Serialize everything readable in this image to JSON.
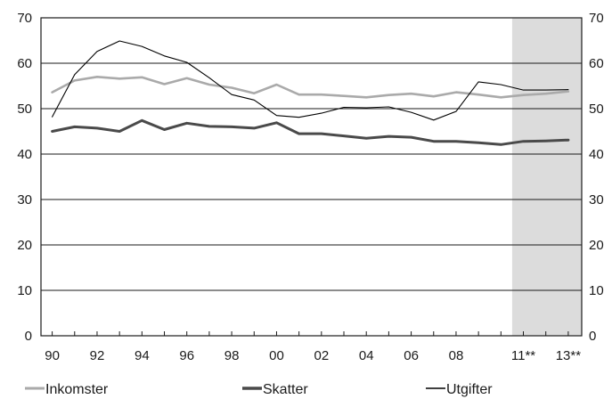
{
  "chart_data": {
    "type": "line",
    "x": [
      1990,
      1991,
      1992,
      1993,
      1994,
      1995,
      1996,
      1997,
      1998,
      1999,
      2000,
      2001,
      2002,
      2003,
      2004,
      2005,
      2006,
      2007,
      2008,
      2009,
      2010,
      2011,
      2012,
      2013
    ],
    "x_tick_values": [
      1990,
      1992,
      1994,
      1996,
      1998,
      2000,
      2002,
      2004,
      2006,
      2008,
      2011,
      2013
    ],
    "x_tick_labels": [
      "90",
      "92",
      "94",
      "96",
      "98",
      "00",
      "02",
      "04",
      "06",
      "08",
      "11**",
      "13**"
    ],
    "xlim": [
      1989.5,
      2013.6
    ],
    "ylim": [
      0,
      70
    ],
    "y_ticks": [
      0,
      10,
      20,
      30,
      40,
      50,
      60,
      70
    ],
    "y_tick_labels": [
      "0",
      "10",
      "20",
      "30",
      "40",
      "50",
      "60",
      "70"
    ],
    "grid": "horizontal",
    "forecast_shading": {
      "from": 2010.5,
      "to": 2013.6,
      "color": "#dcdcdc"
    },
    "legend_position": "bottom",
    "series": [
      {
        "name": "Inkomster",
        "color": "#aaaaaa",
        "width": 2.6,
        "values": [
          53.6,
          56.2,
          57.0,
          56.6,
          56.9,
          55.4,
          56.7,
          55.3,
          54.6,
          53.4,
          55.3,
          53.1,
          53.1,
          52.8,
          52.5,
          53.0,
          53.3,
          52.7,
          53.6,
          53.1,
          52.5,
          53.0,
          53.3,
          53.8
        ]
      },
      {
        "name": "Skatter",
        "color": "#4a4a4a",
        "width": 3,
        "values": [
          45.0,
          46.0,
          45.7,
          45.0,
          47.4,
          45.4,
          46.8,
          46.1,
          46.0,
          45.7,
          46.9,
          44.5,
          44.5,
          44.0,
          43.5,
          43.9,
          43.7,
          42.8,
          42.8,
          42.5,
          42.1,
          42.8,
          42.9,
          43.1
        ]
      },
      {
        "name": "Utgifter",
        "color": "#000000",
        "width": 1.1,
        "values": [
          48.2,
          57.5,
          62.6,
          64.9,
          63.7,
          61.6,
          60.2,
          56.8,
          53.1,
          51.9,
          48.5,
          48.1,
          49.0,
          50.3,
          50.2,
          50.4,
          49.2,
          47.5,
          49.4,
          55.9,
          55.3,
          54.1,
          54.1,
          54.2
        ]
      }
    ]
  }
}
